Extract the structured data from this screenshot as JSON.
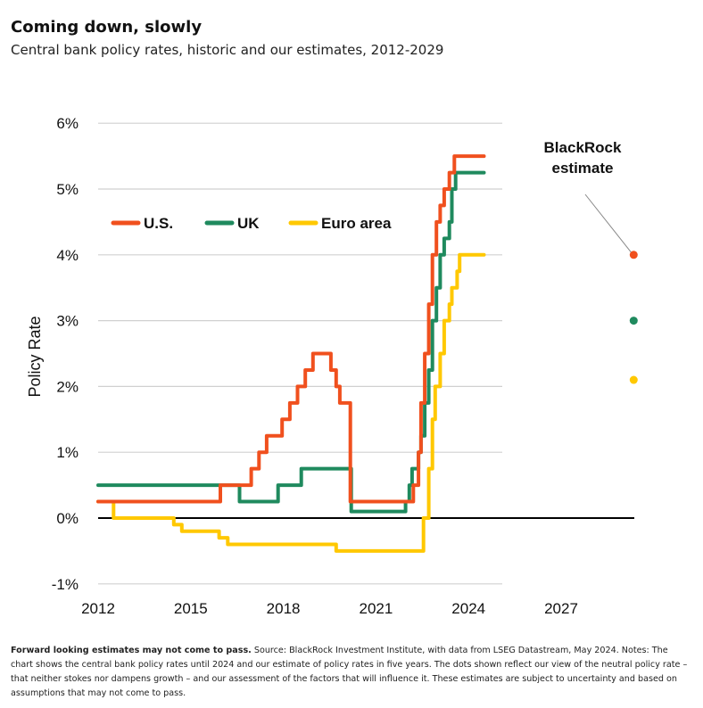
{
  "title": "Coming down, slowly",
  "subtitle": "Central bank policy rates, historic and our estimates, 2012-2029",
  "footnote": {
    "bold": "Forward looking estimates may not come to pass.",
    "text": " Source: BlackRock Investment Institute, with data from LSEG Datastream, May 2024. Notes: The chart shows the central bank policy rates until 2024 and our estimate of policy rates in five years. The dots shown reflect our view of the neutral policy rate – that neither stokes nor dampens growth – and our assessment of the factors that will influence it. These estimates are subject to uncertainty and based on assumptions that may not come to pass."
  },
  "chart_data": {
    "type": "line",
    "ylabel": "Policy Rate",
    "xlabel": "",
    "xlim": [
      2012,
      2030
    ],
    "ylim": [
      -1,
      6
    ],
    "x_ticks": [
      2012,
      2015,
      2018,
      2021,
      2024,
      2027
    ],
    "x_tick_labels": [
      "2012",
      "2015",
      "2018",
      "2021",
      "2024",
      "2027"
    ],
    "y_ticks": [
      -1,
      0,
      1,
      2,
      3,
      4,
      5,
      6
    ],
    "y_tick_labels": [
      "-1%",
      "0%",
      "1%",
      "2%",
      "3%",
      "4%",
      "5%",
      "6%"
    ],
    "grid": true,
    "legend_position": "top-left",
    "series": [
      {
        "name": "U.S.",
        "color": "#f0501e",
        "step": true,
        "points": [
          [
            2012.0,
            0.25
          ],
          [
            2015.96,
            0.25
          ],
          [
            2015.96,
            0.5
          ],
          [
            2016.96,
            0.5
          ],
          [
            2016.96,
            0.75
          ],
          [
            2017.21,
            0.75
          ],
          [
            2017.21,
            1.0
          ],
          [
            2017.46,
            1.0
          ],
          [
            2017.46,
            1.25
          ],
          [
            2017.96,
            1.25
          ],
          [
            2017.96,
            1.5
          ],
          [
            2018.21,
            1.5
          ],
          [
            2018.21,
            1.75
          ],
          [
            2018.46,
            1.75
          ],
          [
            2018.46,
            2.0
          ],
          [
            2018.71,
            2.0
          ],
          [
            2018.71,
            2.25
          ],
          [
            2018.96,
            2.25
          ],
          [
            2018.96,
            2.5
          ],
          [
            2019.54,
            2.5
          ],
          [
            2019.54,
            2.25
          ],
          [
            2019.71,
            2.25
          ],
          [
            2019.71,
            2.0
          ],
          [
            2019.83,
            2.0
          ],
          [
            2019.83,
            1.75
          ],
          [
            2020.17,
            1.75
          ],
          [
            2020.17,
            0.25
          ],
          [
            2022.21,
            0.25
          ],
          [
            2022.21,
            0.5
          ],
          [
            2022.38,
            0.5
          ],
          [
            2022.38,
            1.0
          ],
          [
            2022.46,
            1.0
          ],
          [
            2022.46,
            1.75
          ],
          [
            2022.58,
            1.75
          ],
          [
            2022.58,
            2.5
          ],
          [
            2022.71,
            2.5
          ],
          [
            2022.71,
            3.25
          ],
          [
            2022.83,
            3.25
          ],
          [
            2022.83,
            4.0
          ],
          [
            2022.96,
            4.0
          ],
          [
            2022.96,
            4.5
          ],
          [
            2023.08,
            4.5
          ],
          [
            2023.08,
            4.75
          ],
          [
            2023.21,
            4.75
          ],
          [
            2023.21,
            5.0
          ],
          [
            2023.38,
            5.0
          ],
          [
            2023.38,
            5.25
          ],
          [
            2023.54,
            5.25
          ],
          [
            2023.54,
            5.5
          ],
          [
            2024.5,
            5.5
          ]
        ]
      },
      {
        "name": "UK",
        "color": "#1f8a5e",
        "step": true,
        "points": [
          [
            2012.0,
            0.5
          ],
          [
            2016.58,
            0.5
          ],
          [
            2016.58,
            0.25
          ],
          [
            2017.83,
            0.25
          ],
          [
            2017.83,
            0.5
          ],
          [
            2018.58,
            0.5
          ],
          [
            2018.58,
            0.75
          ],
          [
            2020.2,
            0.75
          ],
          [
            2020.2,
            0.1
          ],
          [
            2021.96,
            0.1
          ],
          [
            2021.96,
            0.25
          ],
          [
            2022.08,
            0.25
          ],
          [
            2022.08,
            0.5
          ],
          [
            2022.17,
            0.5
          ],
          [
            2022.17,
            0.75
          ],
          [
            2022.38,
            0.75
          ],
          [
            2022.38,
            1.0
          ],
          [
            2022.46,
            1.0
          ],
          [
            2022.46,
            1.25
          ],
          [
            2022.58,
            1.25
          ],
          [
            2022.58,
            1.75
          ],
          [
            2022.71,
            1.75
          ],
          [
            2022.71,
            2.25
          ],
          [
            2022.83,
            2.25
          ],
          [
            2022.83,
            3.0
          ],
          [
            2022.96,
            3.0
          ],
          [
            2022.96,
            3.5
          ],
          [
            2023.08,
            3.5
          ],
          [
            2023.08,
            4.0
          ],
          [
            2023.21,
            4.0
          ],
          [
            2023.21,
            4.25
          ],
          [
            2023.38,
            4.25
          ],
          [
            2023.38,
            4.5
          ],
          [
            2023.46,
            4.5
          ],
          [
            2023.46,
            5.0
          ],
          [
            2023.58,
            5.0
          ],
          [
            2023.58,
            5.25
          ],
          [
            2024.5,
            5.25
          ]
        ]
      },
      {
        "name": "Euro area",
        "color": "#ffc800",
        "step": true,
        "points": [
          [
            2012.0,
            0.25
          ],
          [
            2012.5,
            0.25
          ],
          [
            2012.5,
            0.0
          ],
          [
            2014.45,
            0.0
          ],
          [
            2014.45,
            -0.1
          ],
          [
            2014.71,
            -0.1
          ],
          [
            2014.71,
            -0.2
          ],
          [
            2015.92,
            -0.2
          ],
          [
            2015.92,
            -0.3
          ],
          [
            2016.2,
            -0.3
          ],
          [
            2016.2,
            -0.4
          ],
          [
            2019.71,
            -0.4
          ],
          [
            2019.71,
            -0.5
          ],
          [
            2022.54,
            -0.5
          ],
          [
            2022.54,
            0.0
          ],
          [
            2022.71,
            0.0
          ],
          [
            2022.71,
            0.75
          ],
          [
            2022.83,
            0.75
          ],
          [
            2022.83,
            1.5
          ],
          [
            2022.92,
            1.5
          ],
          [
            2022.92,
            2.0
          ],
          [
            2023.08,
            2.0
          ],
          [
            2023.08,
            2.5
          ],
          [
            2023.21,
            2.5
          ],
          [
            2023.21,
            3.0
          ],
          [
            2023.38,
            3.0
          ],
          [
            2023.38,
            3.25
          ],
          [
            2023.46,
            3.25
          ],
          [
            2023.46,
            3.5
          ],
          [
            2023.63,
            3.5
          ],
          [
            2023.63,
            3.75
          ],
          [
            2023.71,
            3.75
          ],
          [
            2023.71,
            4.0
          ],
          [
            2024.5,
            4.0
          ]
        ]
      }
    ],
    "estimates": [
      {
        "series": "U.S.",
        "value": 4.0
      },
      {
        "series": "UK",
        "value": 3.0
      },
      {
        "series": "Euro area",
        "value": 2.1
      }
    ],
    "annotations": [
      {
        "text_lines": [
          "BlackRock",
          "estimate"
        ],
        "points_to": "U.S. estimate"
      }
    ]
  }
}
